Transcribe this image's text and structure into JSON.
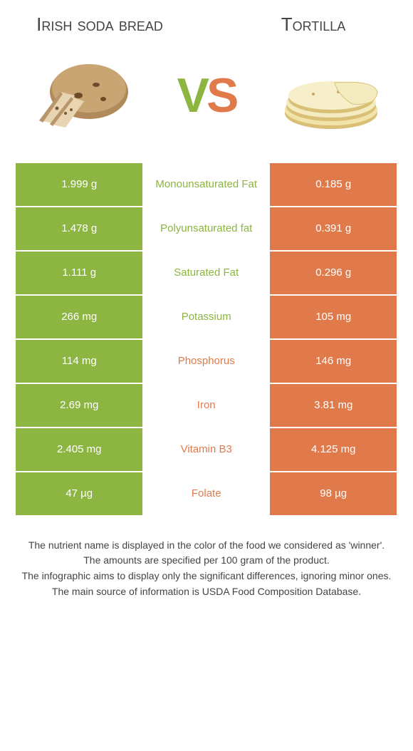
{
  "colors": {
    "green": "#8cb542",
    "orange": "#e07a4b",
    "text": "#444444",
    "bg": "#ffffff"
  },
  "header": {
    "left_title": "Irish soda bread",
    "right_title": "Tortilla",
    "vs_v": "V",
    "vs_s": "S"
  },
  "rows": [
    {
      "left": "1.999 g",
      "label": "Monounsaturated Fat",
      "right": "0.185 g",
      "winner": "left"
    },
    {
      "left": "1.478 g",
      "label": "Polyunsaturated fat",
      "right": "0.391 g",
      "winner": "left"
    },
    {
      "left": "1.111 g",
      "label": "Saturated Fat",
      "right": "0.296 g",
      "winner": "left"
    },
    {
      "left": "266 mg",
      "label": "Potassium",
      "right": "105 mg",
      "winner": "left"
    },
    {
      "left": "114 mg",
      "label": "Phosphorus",
      "right": "146 mg",
      "winner": "right"
    },
    {
      "left": "2.69 mg",
      "label": "Iron",
      "right": "3.81 mg",
      "winner": "right"
    },
    {
      "left": "2.405 mg",
      "label": "Vitamin B3",
      "right": "4.125 mg",
      "winner": "right"
    },
    {
      "left": "47 µg",
      "label": "Folate",
      "right": "98 µg",
      "winner": "right"
    }
  ],
  "footer": {
    "line1": "The nutrient name is displayed in the color of the food we considered as 'winner'.",
    "line2": "The amounts are specified per 100 gram of the product.",
    "line3": "The infographic aims to display only the significant differences, ignoring minor ones.",
    "line4": "The main source of information is USDA Food Composition Database."
  }
}
